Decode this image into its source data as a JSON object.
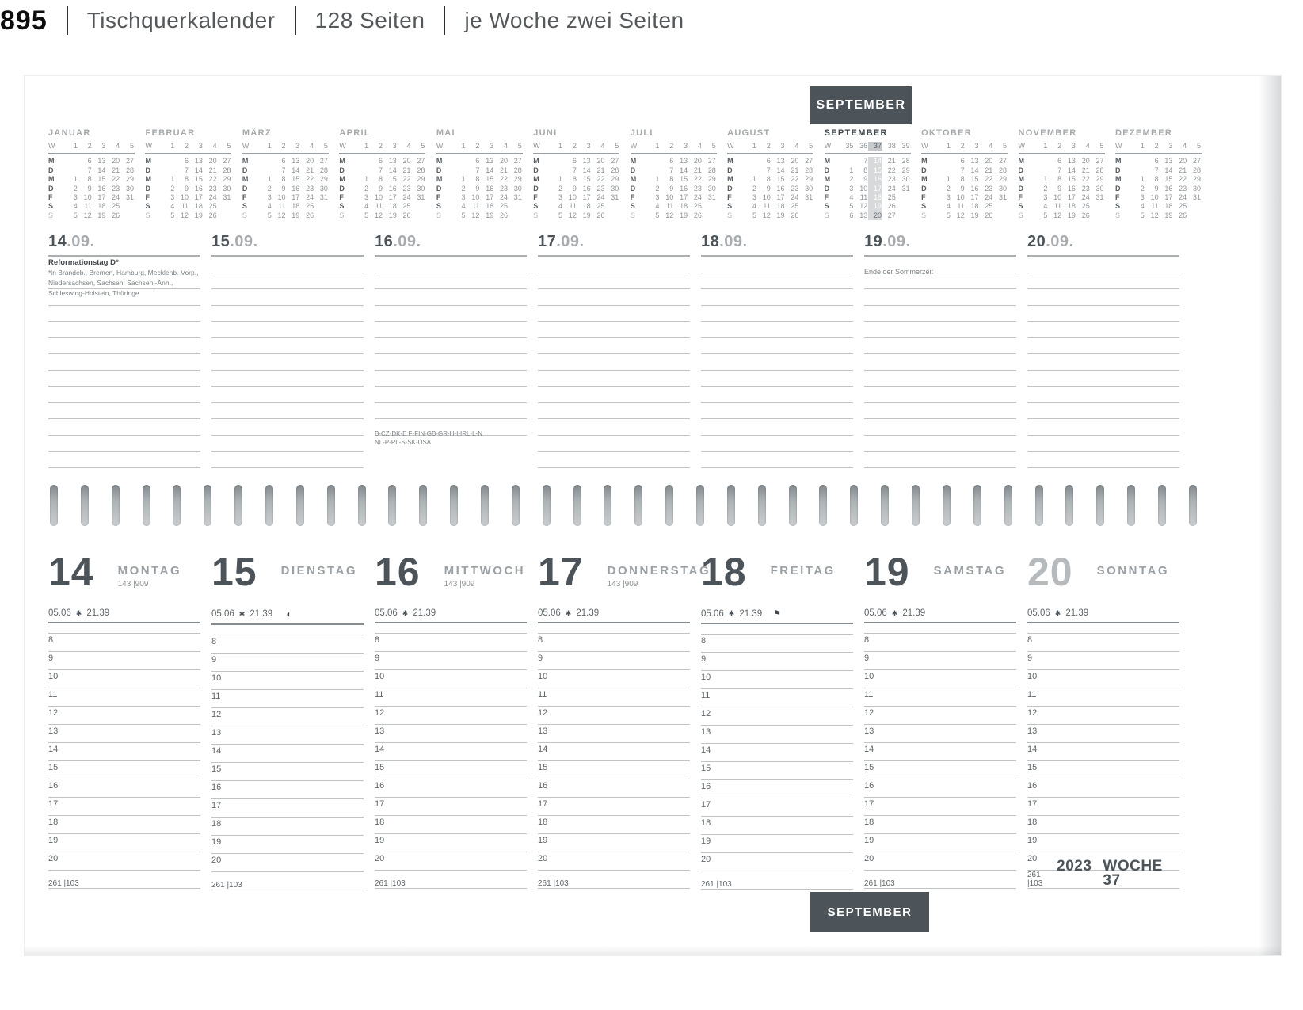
{
  "page_header": {
    "number": "895",
    "items": [
      "Tischquerkalender",
      "128 Seiten",
      "je Woche zwei Seiten"
    ]
  },
  "tabs": {
    "top": "SEPTEMBER",
    "bottom": "SEPTEMBER"
  },
  "colors": {
    "tab_bg": "#4c545a",
    "dark_text": "#4c545a",
    "gray_text": "#9aa0a4",
    "line": "#c0c4c6",
    "highlight": "#d7d9da"
  },
  "mini_calendar": {
    "week_col_label": "W",
    "day_labels": [
      "M",
      "D",
      "M",
      "D",
      "F",
      "S",
      "S"
    ],
    "generic_week_header": [
      "1",
      "2",
      "3",
      "4",
      "5"
    ],
    "generic_rows": [
      [
        "",
        "6",
        "13",
        "20",
        "27"
      ],
      [
        "",
        "7",
        "14",
        "21",
        "28"
      ],
      [
        "1",
        "8",
        "15",
        "22",
        "29"
      ],
      [
        "2",
        "9",
        "16",
        "23",
        "30"
      ],
      [
        "3",
        "10",
        "17",
        "24",
        "31"
      ],
      [
        "4",
        "11",
        "18",
        "25",
        ""
      ],
      [
        "5",
        "12",
        "19",
        "26",
        ""
      ]
    ],
    "months": [
      {
        "name": "JANUAR"
      },
      {
        "name": "FEBRUAR"
      },
      {
        "name": "MÄRZ"
      },
      {
        "name": "APRIL"
      },
      {
        "name": "MAI"
      },
      {
        "name": "JUNI"
      },
      {
        "name": "JULI"
      },
      {
        "name": "AUGUST"
      },
      {
        "name": "SEPTEMBER",
        "active": true,
        "highlight_col": 2,
        "week_header": [
          "35",
          "36",
          "37",
          "38",
          "39"
        ],
        "rows": [
          [
            "",
            "7",
            "14",
            "21",
            "28"
          ],
          [
            "1",
            "8",
            "15",
            "22",
            "29"
          ],
          [
            "2",
            "9",
            "16",
            "23",
            "30"
          ],
          [
            "3",
            "10",
            "17",
            "24",
            "31"
          ],
          [
            "4",
            "11",
            "18",
            "25",
            ""
          ],
          [
            "5",
            "12",
            "19",
            "26",
            ""
          ],
          [
            "6",
            "13",
            "20",
            "27",
            ""
          ]
        ]
      },
      {
        "name": "OKTOBER"
      },
      {
        "name": "NOVEMBER"
      },
      {
        "name": "DEZEMBER"
      }
    ]
  },
  "notes_section": {
    "columns": [
      {
        "day": "14",
        "suffix": ".09.",
        "holiday_title": "Reformationstag D*",
        "holiday_lines": [
          "*in Brandeb., Bremen, Hamburg, Mecklenb.-Vorp.,",
          "Niedersachsen, Sachsen, Sachsen,-Anh.,",
          "Schleswing-Holstein, Thüringe"
        ]
      },
      {
        "day": "15",
        "suffix": ".09."
      },
      {
        "day": "16",
        "suffix": ".09.",
        "footnote_lines": [
          "B-CZ-DK-E F-FIN-GB-GR-H-I-IRL-L-N",
          "NL-P-PL-S-SK-USA"
        ]
      },
      {
        "day": "17",
        "suffix": ".09."
      },
      {
        "day": "18",
        "suffix": ".09."
      },
      {
        "day": "19",
        "suffix": ".09.",
        "note": "Ende der Sommerzeit"
      },
      {
        "day": "20",
        "suffix": ".09."
      }
    ]
  },
  "day_section": {
    "sun_icon": "✱",
    "days": [
      {
        "num": "14",
        "name": "MONTAG",
        "stat": "143 |909",
        "sunrise": "05.06",
        "sunset": "21.39"
      },
      {
        "num": "15",
        "name": "DIENSTAG",
        "sunrise": "05.06",
        "sunset": "21.39",
        "moon_icon": "◖"
      },
      {
        "num": "16",
        "name": "MITTWOCH",
        "stat": "143 |909",
        "sunrise": "05.06",
        "sunset": "21.39"
      },
      {
        "num": "17",
        "name": "DONNERSTAG",
        "stat": "143 |909",
        "sunrise": "05.06",
        "sunset": "21.39"
      },
      {
        "num": "18",
        "name": "FREITAG",
        "sunrise": "05.06",
        "sunset": "21.39",
        "event_icon": "⚑"
      },
      {
        "num": "19",
        "name": "SAMSTAG",
        "sunrise": "05.06",
        "sunset": "21.39"
      },
      {
        "num": "20",
        "name": "SONNTAG",
        "muted": true,
        "sunrise": "05.06",
        "sunset": "21.39"
      }
    ],
    "hours": [
      "8",
      "9",
      "10",
      "11",
      "12",
      "13",
      "14",
      "15",
      "16",
      "17",
      "18",
      "19",
      "20"
    ],
    "stat": "261 |103"
  },
  "footer": {
    "year": "2023",
    "week": "WOCHE 37"
  }
}
